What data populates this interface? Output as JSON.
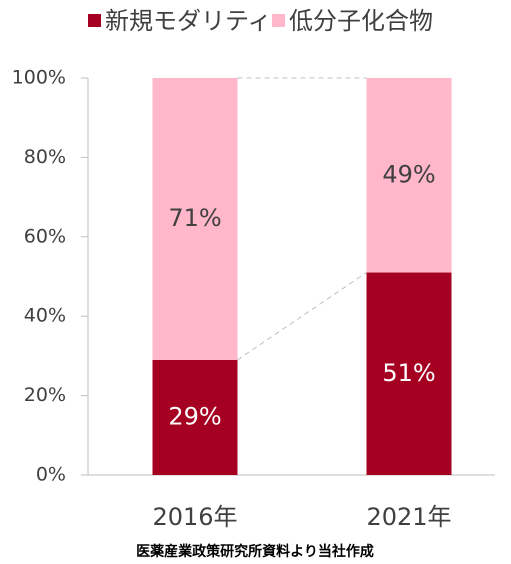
{
  "chart_data": {
    "type": "stacked_bar",
    "categories": [
      "2016年",
      "2021年"
    ],
    "series": [
      {
        "name": "新規モダリティ",
        "color": "#a50021",
        "values": [
          29,
          51
        ],
        "value_labels": [
          "29%",
          "51%"
        ],
        "label_color": "#ffffff"
      },
      {
        "name": "低分子化合物",
        "color": "#ffb7c9",
        "values": [
          71,
          49
        ],
        "value_labels": [
          "71%",
          "49%"
        ],
        "label_color": "#404040"
      }
    ],
    "ylim": [
      0,
      100
    ],
    "yticks": [
      {
        "value": 0,
        "label": "0%"
      },
      {
        "value": 20,
        "label": "20%"
      },
      {
        "value": 40,
        "label": "40%"
      },
      {
        "value": 60,
        "label": "60%"
      },
      {
        "value": 80,
        "label": "80%"
      },
      {
        "value": 100,
        "label": "100%"
      }
    ],
    "legend": "top",
    "note": "医薬産業政策研究所資料より当社作成"
  }
}
